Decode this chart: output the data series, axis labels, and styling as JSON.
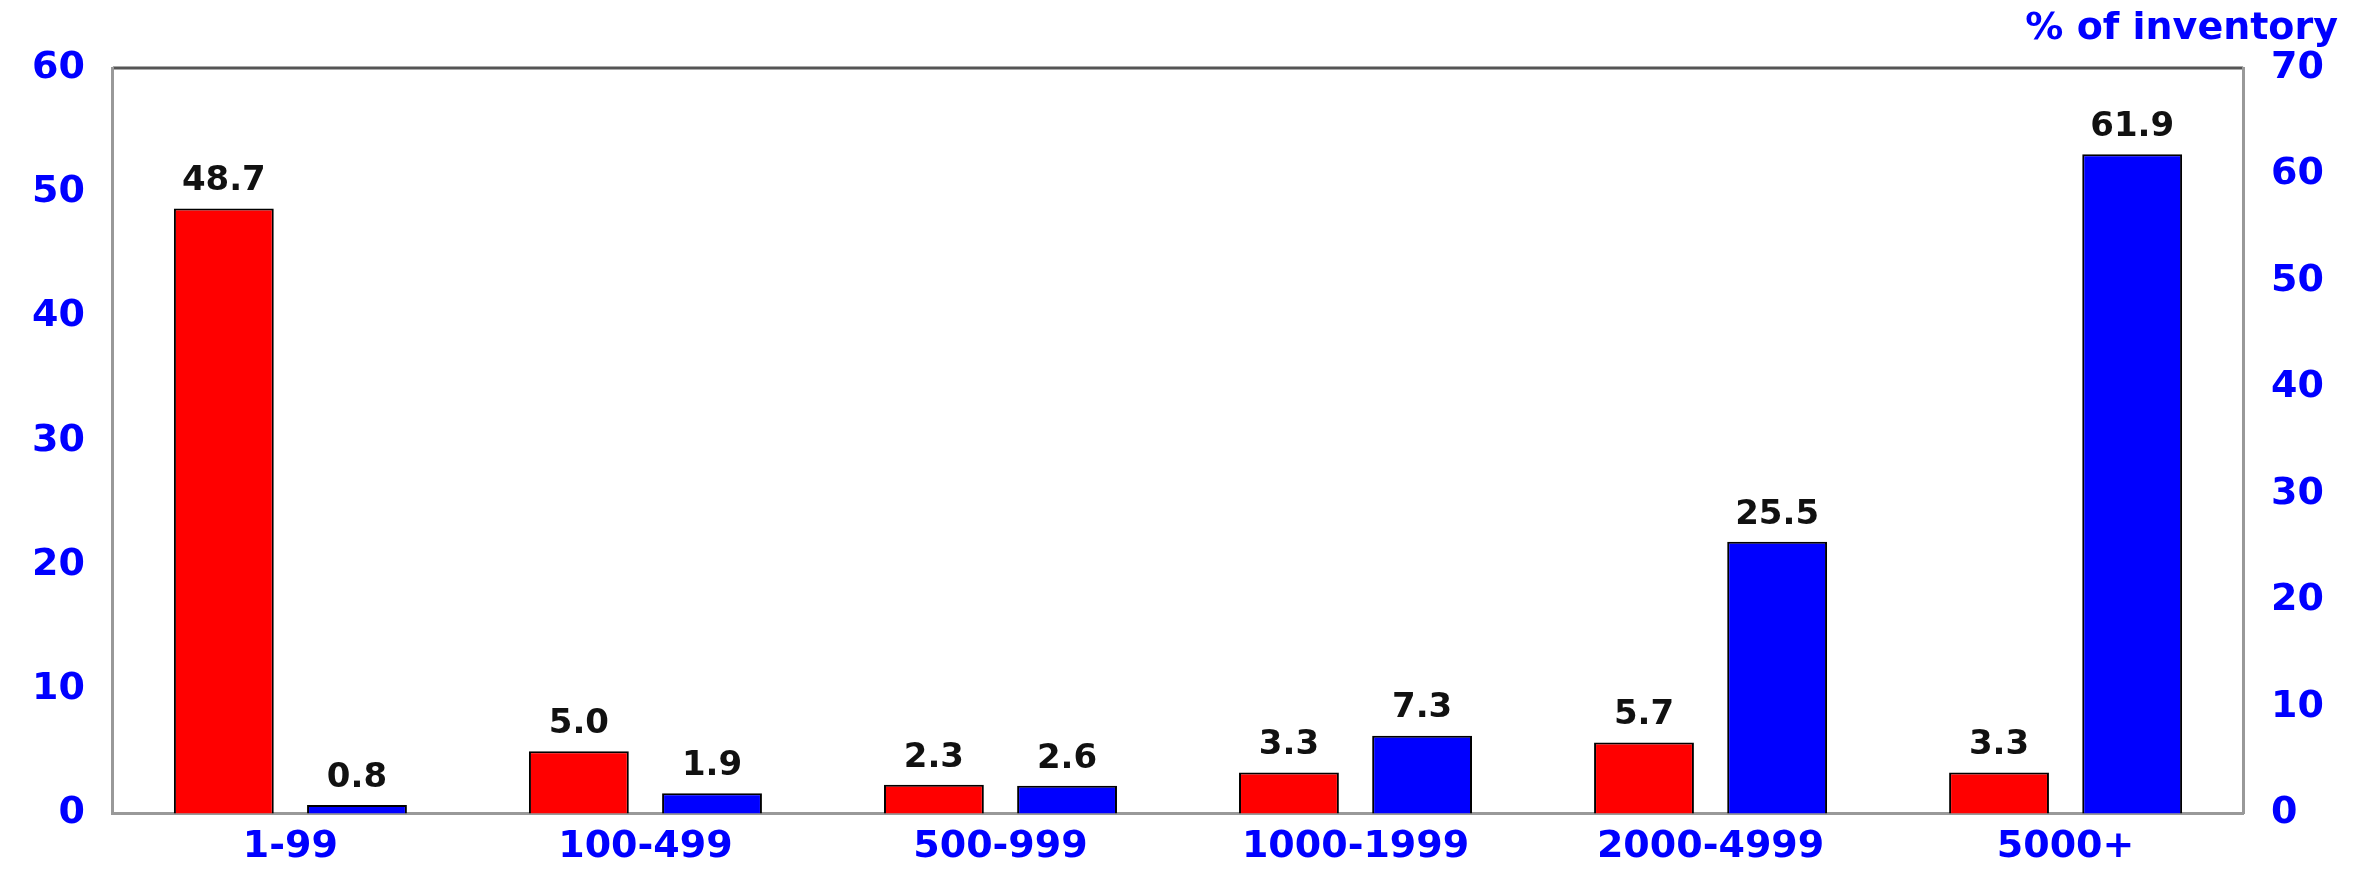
{
  "chart_data": {
    "type": "bar",
    "y2label": "% of inventory",
    "categories": [
      "1-99",
      "100-499",
      "500-999",
      "1000-1999",
      "2000-4999",
      "5000+"
    ],
    "series": [
      {
        "color": "#ff0000",
        "values": [
          48.7,
          5.0,
          2.3,
          3.3,
          5.7,
          3.3
        ],
        "value_labels": [
          "48.7",
          "5.0",
          "2.3",
          "3.3",
          "5.7",
          "3.3"
        ]
      },
      {
        "color": "#0000ff",
        "axis": "y2",
        "values": [
          0.8,
          1.9,
          2.6,
          7.3,
          25.5,
          61.9
        ],
        "value_labels": [
          "0.8",
          "1.9",
          "2.6",
          "7.3",
          "25.5",
          "61.9"
        ]
      }
    ],
    "ylim": [
      0,
      60
    ],
    "yticks": [
      0,
      10,
      20,
      30,
      40,
      50,
      60
    ],
    "y2lim": [
      0,
      70
    ],
    "y2ticks": [
      0,
      10,
      20,
      30,
      40,
      50,
      60,
      70
    ],
    "grid": false,
    "legend": false
  }
}
